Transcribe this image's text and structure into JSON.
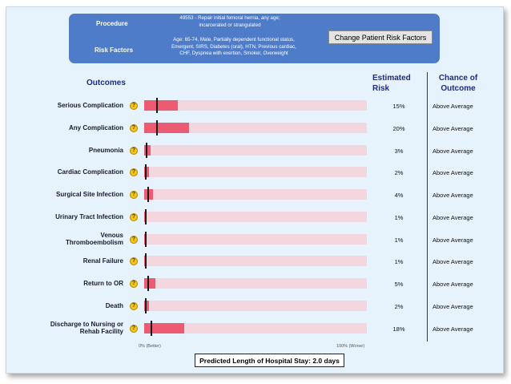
{
  "header": {
    "procedure_label": "Procedure",
    "procedure_line1": "49553 - Repair initial femoral hernia, any age;",
    "procedure_line2": "incarcerated or strangulated",
    "risk_factors_label": "Risk Factors",
    "risk_line1": "Age: 65-74, Male, Partially dependent functional status,",
    "risk_line2": "Emergent, SIRS, Diabetes (oral), HTN, Previous cardiac,",
    "risk_line3": "CHF, Dyspnea with exertion, Smoker, Overweight",
    "change_button": "Change Patient Risk Factors"
  },
  "columns": {
    "outcomes": "Outcomes",
    "estimated_risk_line1": "Estimated",
    "estimated_risk_line2": "Risk",
    "chance_line1": "Chance of",
    "chance_line2": "Outcome"
  },
  "rows": [
    {
      "label": [
        "Serious Complication"
      ],
      "risk": "15%",
      "value": 15,
      "average": 5.5,
      "chance": "Above Average"
    },
    {
      "label": [
        "Any Complication"
      ],
      "risk": "20%",
      "value": 20,
      "average": 5.5,
      "chance": "Above Average"
    },
    {
      "label": [
        "Pneumonia"
      ],
      "risk": "3%",
      "value": 3,
      "average": 0.6,
      "chance": "Above Average"
    },
    {
      "label": [
        "Cardiac Complication"
      ],
      "risk": "2%",
      "value": 2,
      "average": 0.3,
      "chance": "Above Average"
    },
    {
      "label": [
        "Surgical Site Infection"
      ],
      "risk": "4%",
      "value": 4,
      "average": 1.6,
      "chance": "Above Average"
    },
    {
      "label": [
        "Urinary Tract Infection"
      ],
      "risk": "1%",
      "value": 1,
      "average": 0.5,
      "chance": "Above Average"
    },
    {
      "label": [
        "Venous",
        "Thromboembolism"
      ],
      "risk": "1%",
      "value": 1,
      "average": 0.5,
      "chance": "Above Average"
    },
    {
      "label": [
        "Renal Failure"
      ],
      "risk": "1%",
      "value": 1,
      "average": 0.2,
      "chance": "Above Average"
    },
    {
      "label": [
        "Return to OR"
      ],
      "risk": "5%",
      "value": 5,
      "average": 1.6,
      "chance": "Above Average"
    },
    {
      "label": [
        "Death"
      ],
      "risk": "2%",
      "value": 2,
      "average": 0.4,
      "chance": "Above Average"
    },
    {
      "label": [
        "Discharge to Nursing or",
        "Rehab Facility"
      ],
      "risk": "18%",
      "value": 18,
      "average": 2.8,
      "chance": "Above Average"
    }
  ],
  "axis": {
    "min_label": "0% (Better)",
    "max_label": "100% (Worse)"
  },
  "length_of_stay": "Predicted Length of Hospital Stay: 2.0 days",
  "colors": {
    "header_bg": "#4f7cc8",
    "bar_fill": "#ec5b71",
    "bar_track": "#f3d6de",
    "heading_text": "#1f2a88"
  }
}
